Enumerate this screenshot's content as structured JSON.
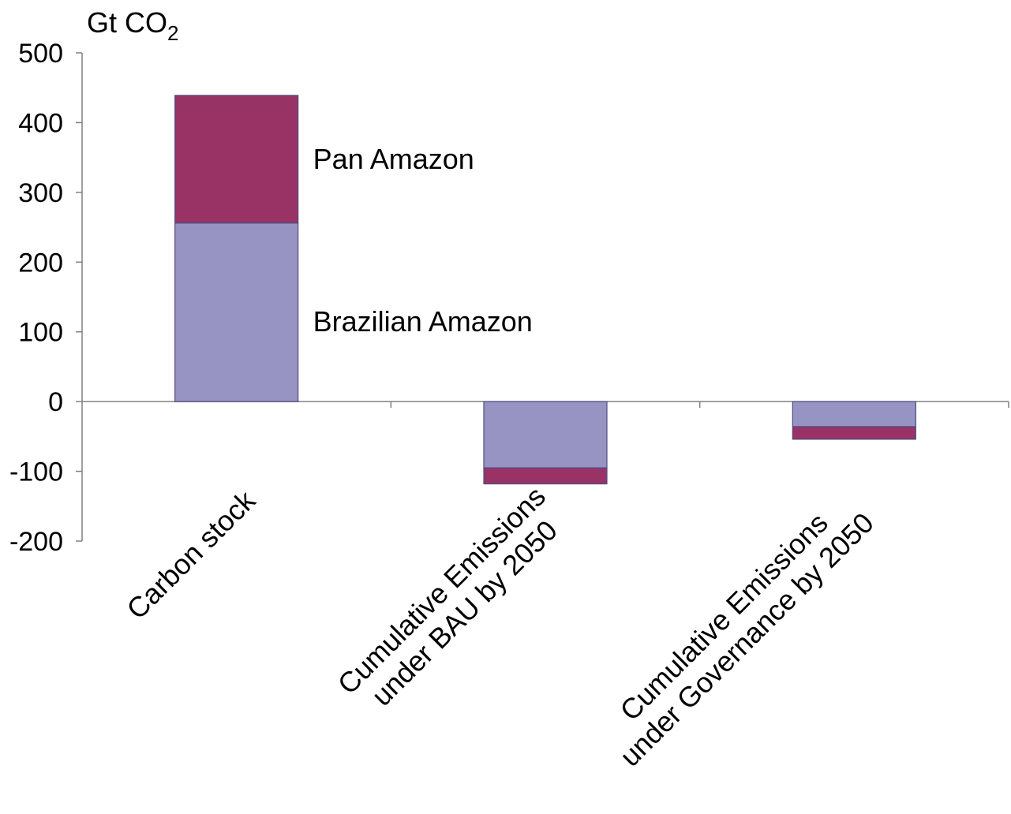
{
  "chart_data": {
    "type": "bar",
    "stacked": true,
    "title": "",
    "xlabel": "",
    "ylabel": "",
    "y_unit_label": {
      "main": "Gt CO",
      "subscript": "2"
    },
    "categories": [
      [
        "Carbon stock"
      ],
      [
        "Cumulative Emissions",
        "under BAU by 2050"
      ],
      [
        "Cumulative Emissions",
        "under  Governance by 2050"
      ]
    ],
    "series": [
      {
        "name": "Brazilian Amazon",
        "color": "#9794c4",
        "values": [
          256,
          -95,
          -36
        ]
      },
      {
        "name": "Pan Amazon",
        "color": "#993366",
        "values": [
          183,
          -23,
          -18
        ]
      }
    ],
    "ylim": [
      -200,
      500
    ],
    "yticks": [
      500,
      400,
      300,
      200,
      100,
      0,
      -100,
      -200
    ],
    "ytick_labels": [
      "500",
      "400",
      "300",
      "200",
      "100",
      "0",
      "-100",
      "-200"
    ],
    "grid": false,
    "legend": "inline labels beside first bar",
    "colors": {
      "axis": "#808080",
      "bar_border": "#4d4d80"
    }
  }
}
